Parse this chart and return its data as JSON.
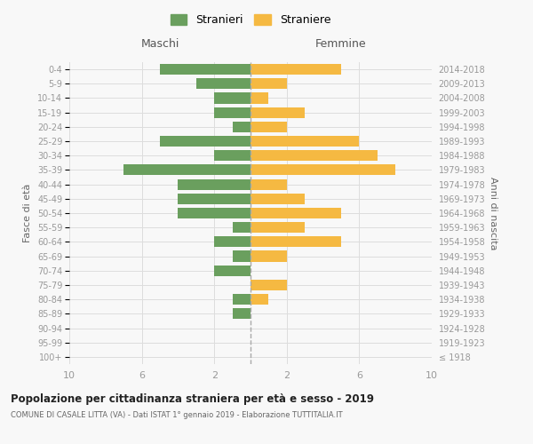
{
  "age_groups": [
    "100+",
    "95-99",
    "90-94",
    "85-89",
    "80-84",
    "75-79",
    "70-74",
    "65-69",
    "60-64",
    "55-59",
    "50-54",
    "45-49",
    "40-44",
    "35-39",
    "30-34",
    "25-29",
    "20-24",
    "15-19",
    "10-14",
    "5-9",
    "0-4"
  ],
  "birth_years": [
    "≤ 1918",
    "1919-1923",
    "1924-1928",
    "1929-1933",
    "1934-1938",
    "1939-1943",
    "1944-1948",
    "1949-1953",
    "1954-1958",
    "1959-1963",
    "1964-1968",
    "1969-1973",
    "1974-1978",
    "1979-1983",
    "1984-1988",
    "1989-1993",
    "1994-1998",
    "1999-2003",
    "2004-2008",
    "2009-2013",
    "2014-2018"
  ],
  "maschi": [
    0,
    0,
    0,
    1,
    1,
    0,
    2,
    1,
    2,
    1,
    4,
    4,
    4,
    7,
    2,
    5,
    1,
    2,
    2,
    3,
    5
  ],
  "femmine": [
    0,
    0,
    0,
    0,
    1,
    2,
    0,
    2,
    5,
    3,
    5,
    3,
    2,
    8,
    7,
    6,
    2,
    3,
    1,
    2,
    5
  ],
  "color_maschi": "#6a9f5e",
  "color_femmine": "#f5b942",
  "title": "Popolazione per cittadinanza straniera per età e sesso - 2019",
  "subtitle": "COMUNE DI CASALE LITTA (VA) - Dati ISTAT 1° gennaio 2019 - Elaborazione TUTTITALIA.IT",
  "ylabel_left": "Fasce di età",
  "ylabel_right": "Anni di nascita",
  "label_maschi": "Stranieri",
  "label_femmine": "Straniere",
  "header_maschi": "Maschi",
  "header_femmine": "Femmine",
  "xlim": 10,
  "bg_color": "#f8f8f8",
  "grid_color": "#dddddd",
  "bar_height": 0.75,
  "dashed_line_color": "#aaaaaa"
}
